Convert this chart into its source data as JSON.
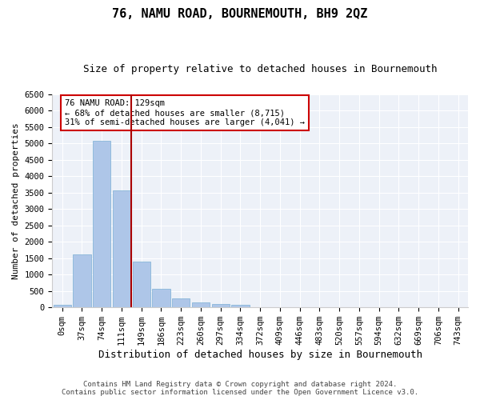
{
  "title": "76, NAMU ROAD, BOURNEMOUTH, BH9 2QZ",
  "subtitle": "Size of property relative to detached houses in Bournemouth",
  "xlabel": "Distribution of detached houses by size in Bournemouth",
  "ylabel": "Number of detached properties",
  "footer_line1": "Contains HM Land Registry data © Crown copyright and database right 2024.",
  "footer_line2": "Contains public sector information licensed under the Open Government Licence v3.0.",
  "bar_labels": [
    "0sqm",
    "37sqm",
    "74sqm",
    "111sqm",
    "149sqm",
    "186sqm",
    "223sqm",
    "260sqm",
    "297sqm",
    "334sqm",
    "372sqm",
    "409sqm",
    "446sqm",
    "483sqm",
    "520sqm",
    "557sqm",
    "594sqm",
    "632sqm",
    "669sqm",
    "706sqm",
    "743sqm"
  ],
  "bar_values": [
    75,
    1625,
    5075,
    3575,
    1400,
    575,
    275,
    150,
    100,
    75,
    0,
    0,
    0,
    0,
    0,
    0,
    0,
    0,
    0,
    0,
    0
  ],
  "bar_color": "#aec6e8",
  "bar_edge_color": "#7bafd4",
  "vline_color": "#aa0000",
  "ylim": [
    0,
    6500
  ],
  "yticks": [
    0,
    500,
    1000,
    1500,
    2000,
    2500,
    3000,
    3500,
    4000,
    4500,
    5000,
    5500,
    6000,
    6500
  ],
  "annotation_text": "76 NAMU ROAD: 129sqm\n← 68% of detached houses are smaller (8,715)\n31% of semi-detached houses are larger (4,041) →",
  "annotation_box_color": "#ffffff",
  "annotation_box_edge": "#cc0000",
  "bg_color": "#edf1f8",
  "fig_bg_color": "#ffffff",
  "grid_color": "#ffffff",
  "title_fontsize": 11,
  "subtitle_fontsize": 9,
  "xlabel_fontsize": 9,
  "ylabel_fontsize": 8,
  "tick_fontsize": 7.5,
  "annotation_fontsize": 7.5,
  "footer_fontsize": 6.5
}
